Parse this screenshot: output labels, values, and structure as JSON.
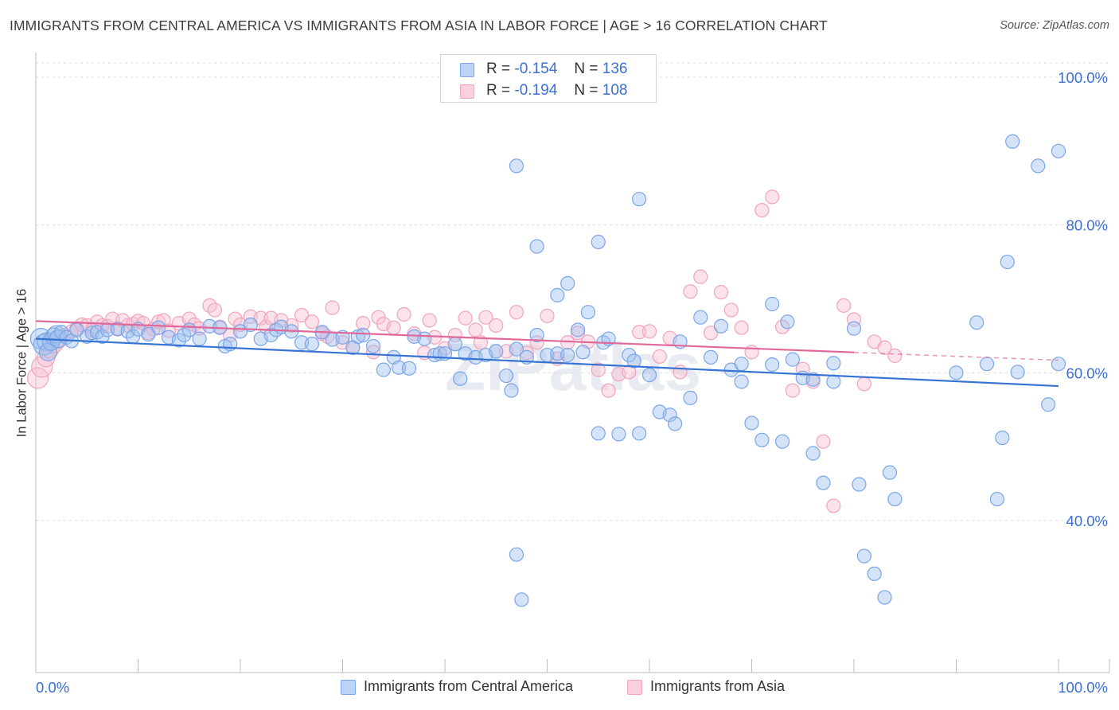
{
  "title": "IMMIGRANTS FROM CENTRAL AMERICA VS IMMIGRANTS FROM ASIA IN LABOR FORCE | AGE > 16 CORRELATION CHART",
  "source": "Source: ZipAtlas.com",
  "watermark": "ZIPatlas",
  "legend": {
    "series1": {
      "r_label": "R =",
      "r_value": "-0.154",
      "n_label": "N =",
      "n_value": "136"
    },
    "series2": {
      "r_label": "R =",
      "r_value": "-0.194",
      "n_label": "N =",
      "n_value": "108"
    }
  },
  "bottom_legend": {
    "series1": "Immigrants from Central America",
    "series2": "Immigrants from Asia"
  },
  "chart_data": {
    "type": "scatter",
    "title": "IMMIGRANTS FROM CENTRAL AMERICA VS IMMIGRANTS FROM ASIA IN LABOR FORCE | AGE > 16 CORRELATION CHART",
    "xlabel": "",
    "ylabel": "In Labor Force | Age > 16",
    "xlim": [
      0,
      100
    ],
    "ylim": [
      20,
      102
    ],
    "x_tick_labels": [
      "0.0%",
      "100.0%"
    ],
    "y_ticks": [
      40,
      60,
      80,
      100
    ],
    "y_tick_labels": [
      "40.0%",
      "60.0%",
      "80.0%",
      "100.0%"
    ],
    "grid": true,
    "colors": {
      "series1": "#7aa6e8",
      "series1_line": "#3573d4",
      "series2": "#f0a4be",
      "series2_line": "#e0689a",
      "tick_label": "#3b6fd1"
    },
    "series": [
      {
        "name": "Immigrants from Central America",
        "trend": {
          "x": [
            0,
            100
          ],
          "y": [
            64.6,
            58.2
          ],
          "dashed_from": null
        },
        "points": [
          [
            0.5,
            64.6
          ],
          [
            0.8,
            63.8
          ],
          [
            1,
            64.2
          ],
          [
            1.2,
            62.8
          ],
          [
            1.5,
            64.2
          ],
          [
            1.8,
            64.9
          ],
          [
            2,
            65.2
          ],
          [
            2.2,
            64.6
          ],
          [
            2.5,
            65.5
          ],
          [
            3,
            64.8
          ],
          [
            3.5,
            64.3
          ],
          [
            4,
            65.8
          ],
          [
            5,
            64.9
          ],
          [
            5.5,
            65.4
          ],
          [
            6,
            65.5
          ],
          [
            6.5,
            64.9
          ],
          [
            7,
            65.8
          ],
          [
            8,
            65.9
          ],
          [
            9,
            65.6
          ],
          [
            9.5,
            64.9
          ],
          [
            10,
            65.9
          ],
          [
            11,
            65.2
          ],
          [
            12,
            66.1
          ],
          [
            13,
            64.8
          ],
          [
            14,
            64.4
          ],
          [
            14.5,
            65.1
          ],
          [
            15,
            65.8
          ],
          [
            16,
            64.6
          ],
          [
            17,
            66.3
          ],
          [
            18,
            66.1
          ],
          [
            18.5,
            63.6
          ],
          [
            19,
            63.9
          ],
          [
            20,
            65.6
          ],
          [
            21,
            66.5
          ],
          [
            22,
            64.6
          ],
          [
            23,
            65.1
          ],
          [
            23.5,
            65.8
          ],
          [
            24,
            66.2
          ],
          [
            25,
            65.6
          ],
          [
            26,
            64.1
          ],
          [
            27,
            63.9
          ],
          [
            28,
            65.5
          ],
          [
            29,
            64.5
          ],
          [
            30,
            64.8
          ],
          [
            31,
            63.4
          ],
          [
            31.5,
            64.9
          ],
          [
            32,
            65.1
          ],
          [
            33,
            63.6
          ],
          [
            34,
            60.4
          ],
          [
            35,
            62.1
          ],
          [
            35.5,
            60.7
          ],
          [
            36.5,
            60.6
          ],
          [
            37,
            64.9
          ],
          [
            38,
            64.6
          ],
          [
            39,
            62.4
          ],
          [
            39.5,
            62.6
          ],
          [
            40,
            62.6
          ],
          [
            41,
            63.9
          ],
          [
            41.5,
            59.2
          ],
          [
            42,
            62.6
          ],
          [
            43,
            62.1
          ],
          [
            44,
            62.4
          ],
          [
            45,
            62.9
          ],
          [
            46,
            59.6
          ],
          [
            46.5,
            57.6
          ],
          [
            47,
            63.2
          ],
          [
            48,
            62.1
          ],
          [
            49,
            65.1
          ],
          [
            50,
            62.4
          ],
          [
            51,
            62.6
          ],
          [
            52,
            62.4
          ],
          [
            53,
            65.8
          ],
          [
            53.5,
            62.8
          ],
          [
            54,
            68.2
          ],
          [
            55,
            51.8
          ],
          [
            55.5,
            64.1
          ],
          [
            56,
            64.6
          ],
          [
            57,
            51.7
          ],
          [
            58,
            62.4
          ],
          [
            58.5,
            61.6
          ],
          [
            59,
            51.8
          ],
          [
            60,
            59.7
          ],
          [
            61,
            54.7
          ],
          [
            62,
            54.3
          ],
          [
            62.5,
            53.1
          ],
          [
            63,
            64.2
          ],
          [
            64,
            56.6
          ],
          [
            65,
            67.5
          ],
          [
            66,
            62.1
          ],
          [
            67,
            66.3
          ],
          [
            68,
            60.4
          ],
          [
            69,
            58.8
          ],
          [
            70,
            53.2
          ],
          [
            71,
            50.9
          ],
          [
            72,
            69.3
          ],
          [
            73,
            50.7
          ],
          [
            73.5,
            66.9
          ],
          [
            74,
            61.8
          ],
          [
            75,
            59.3
          ],
          [
            76,
            49.1
          ],
          [
            77,
            45.1
          ],
          [
            78,
            61.3
          ],
          [
            80,
            66.0
          ],
          [
            80.5,
            44.9
          ],
          [
            81,
            35.2
          ],
          [
            82,
            32.8
          ],
          [
            83,
            29.6
          ],
          [
            83.5,
            46.5
          ],
          [
            84,
            42.9
          ],
          [
            90,
            60.0
          ],
          [
            94,
            42.9
          ],
          [
            94.5,
            51.2
          ],
          [
            47,
            35.4
          ],
          [
            47.5,
            29.3
          ],
          [
            47,
            88.0
          ],
          [
            49,
            77.1
          ],
          [
            51,
            70.5
          ],
          [
            52,
            72.1
          ],
          [
            55,
            77.7
          ],
          [
            59,
            83.5
          ],
          [
            69,
            61.2
          ],
          [
            72,
            61.1
          ],
          [
            76,
            59.1
          ],
          [
            78,
            58.8
          ],
          [
            92,
            66.8
          ],
          [
            93,
            61.2
          ],
          [
            96,
            60.1
          ],
          [
            98,
            88.0
          ],
          [
            100,
            90.0
          ],
          [
            95.5,
            91.3
          ],
          [
            95,
            75.0
          ],
          [
            100,
            61.2
          ],
          [
            99,
            55.7
          ]
        ]
      },
      {
        "name": "Immigrants from Asia",
        "trend": {
          "x": [
            0,
            100
          ],
          "y": [
            67.0,
            61.7
          ],
          "dashed_from": 80
        },
        "points": [
          [
            0.2,
            59.3
          ],
          [
            0.6,
            60.8
          ],
          [
            1,
            62.0
          ],
          [
            1.4,
            63.2
          ],
          [
            1.8,
            63.9
          ],
          [
            2.2,
            64.5
          ],
          [
            2.8,
            65.1
          ],
          [
            3.5,
            65.6
          ],
          [
            4,
            66.0
          ],
          [
            4.5,
            66.5
          ],
          [
            5,
            66.4
          ],
          [
            5.5,
            65.8
          ],
          [
            6,
            66.9
          ],
          [
            6.5,
            66.4
          ],
          [
            7,
            66.3
          ],
          [
            7.5,
            67.3
          ],
          [
            8,
            66.0
          ],
          [
            8.5,
            67.1
          ],
          [
            9,
            66.4
          ],
          [
            9.5,
            66.6
          ],
          [
            10,
            67.0
          ],
          [
            10.5,
            66.7
          ],
          [
            11,
            65.4
          ],
          [
            11.5,
            65.9
          ],
          [
            12,
            66.9
          ],
          [
            12.5,
            67.1
          ],
          [
            13,
            65.7
          ],
          [
            14,
            66.7
          ],
          [
            15,
            67.3
          ],
          [
            15.5,
            66.5
          ],
          [
            16,
            66.0
          ],
          [
            17,
            69.1
          ],
          [
            17.5,
            68.5
          ],
          [
            18,
            66.2
          ],
          [
            19,
            65.1
          ],
          [
            19.5,
            67.3
          ],
          [
            20,
            66.5
          ],
          [
            21,
            67.6
          ],
          [
            22,
            67.4
          ],
          [
            22.5,
            66.2
          ],
          [
            23,
            67.4
          ],
          [
            24,
            67.1
          ],
          [
            25,
            66.4
          ],
          [
            26,
            67.8
          ],
          [
            27,
            66.9
          ],
          [
            28,
            65.3
          ],
          [
            28.5,
            64.9
          ],
          [
            29,
            68.8
          ],
          [
            30,
            64.1
          ],
          [
            31,
            63.4
          ],
          [
            32,
            66.7
          ],
          [
            33,
            62.8
          ],
          [
            33.5,
            67.5
          ],
          [
            34,
            66.6
          ],
          [
            35,
            66.1
          ],
          [
            36,
            67.9
          ],
          [
            37,
            65.3
          ],
          [
            38,
            62.7
          ],
          [
            38.5,
            67.1
          ],
          [
            39,
            64.8
          ],
          [
            40,
            63.3
          ],
          [
            41,
            65.1
          ],
          [
            42,
            67.4
          ],
          [
            43,
            65.8
          ],
          [
            43.5,
            64.1
          ],
          [
            44,
            67.5
          ],
          [
            45,
            66.4
          ],
          [
            46,
            62.9
          ],
          [
            47,
            68.2
          ],
          [
            48,
            62.7
          ],
          [
            49,
            64.1
          ],
          [
            50,
            67.7
          ],
          [
            51,
            61.9
          ],
          [
            52,
            64.1
          ],
          [
            53,
            65.4
          ],
          [
            54,
            64.2
          ],
          [
            55,
            60.4
          ],
          [
            56,
            57.6
          ],
          [
            57,
            59.8
          ],
          [
            58,
            60.1
          ],
          [
            59,
            65.5
          ],
          [
            60,
            65.6
          ],
          [
            61,
            62.2
          ],
          [
            62,
            64.7
          ],
          [
            63,
            60.1
          ],
          [
            64,
            71.0
          ],
          [
            65,
            73.0
          ],
          [
            66,
            65.4
          ],
          [
            67,
            70.9
          ],
          [
            68,
            68.5
          ],
          [
            69,
            66.1
          ],
          [
            70,
            62.8
          ],
          [
            71,
            82.0
          ],
          [
            72,
            83.8
          ],
          [
            73,
            66.2
          ],
          [
            74,
            57.6
          ],
          [
            75,
            60.5
          ],
          [
            76,
            58.8
          ],
          [
            77,
            50.7
          ],
          [
            78,
            42.0
          ],
          [
            79,
            69.1
          ],
          [
            80,
            67.2
          ],
          [
            81,
            58.5
          ],
          [
            82,
            64.2
          ],
          [
            83,
            63.4
          ],
          [
            84,
            62.3
          ]
        ]
      }
    ]
  }
}
